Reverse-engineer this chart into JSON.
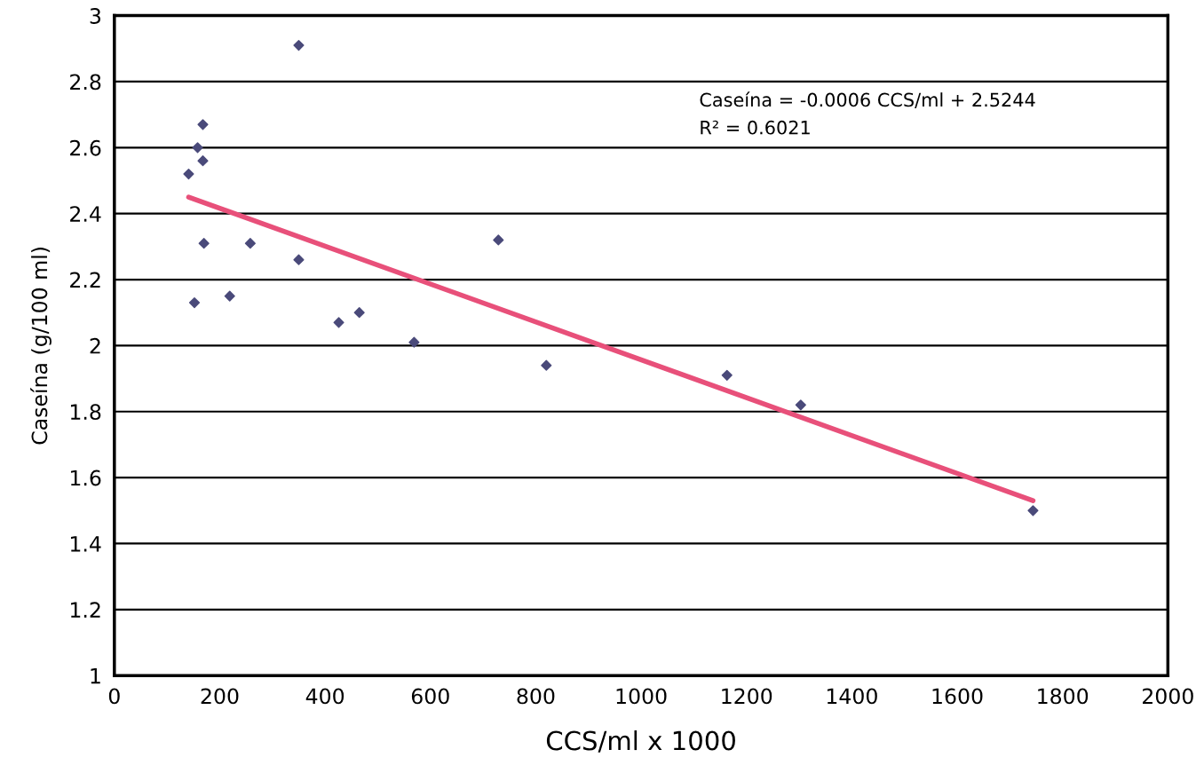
{
  "chart_data": {
    "type": "scatter",
    "xlabel": "CCS/ml x 1000",
    "ylabel": "Caseína (g/100 ml)",
    "xlim": [
      0,
      2000
    ],
    "xticks": [
      0,
      200,
      400,
      600,
      800,
      1000,
      1200,
      1400,
      1600,
      1800,
      2000
    ],
    "ylim": [
      1,
      3
    ],
    "yticks": [
      1,
      {
        "value": 1.2,
        "label": "1.2"
      },
      {
        "value": 1.4,
        "label": "1.4"
      },
      {
        "value": 1.6,
        "label": "1.6"
      },
      {
        "value": 1.8,
        "label": "1.8"
      },
      2,
      {
        "value": 2.2,
        "label": "2.2"
      },
      {
        "value": 2.4,
        "label": "2.4"
      },
      {
        "value": 2.6,
        "label": "2.6"
      },
      {
        "value": 2.8,
        "label": "2.8"
      },
      3
    ],
    "grid": "y",
    "series": [
      {
        "marker": "diamond",
        "color": "#4a4a7a",
        "x": [
          141,
          152,
          158,
          168,
          168,
          170,
          219,
          258,
          350,
          350,
          426,
          465,
          569,
          729,
          820,
          1163,
          1303,
          1744
        ],
        "values": [
          2.52,
          2.13,
          2.6,
          2.67,
          2.56,
          2.31,
          2.15,
          2.31,
          2.91,
          2.26,
          2.07,
          2.1,
          2.01,
          2.32,
          1.94,
          1.91,
          1.82,
          1.5
        ]
      },
      {
        "type": "line",
        "marker": "none",
        "color": "#e8507a",
        "x": [
          141,
          1744
        ],
        "values": [
          2.45,
          1.53
        ]
      }
    ],
    "annotations": [
      "Caseína = -0.0006 CCS/ml + 2.5244",
      "R² = 0.6021"
    ]
  }
}
